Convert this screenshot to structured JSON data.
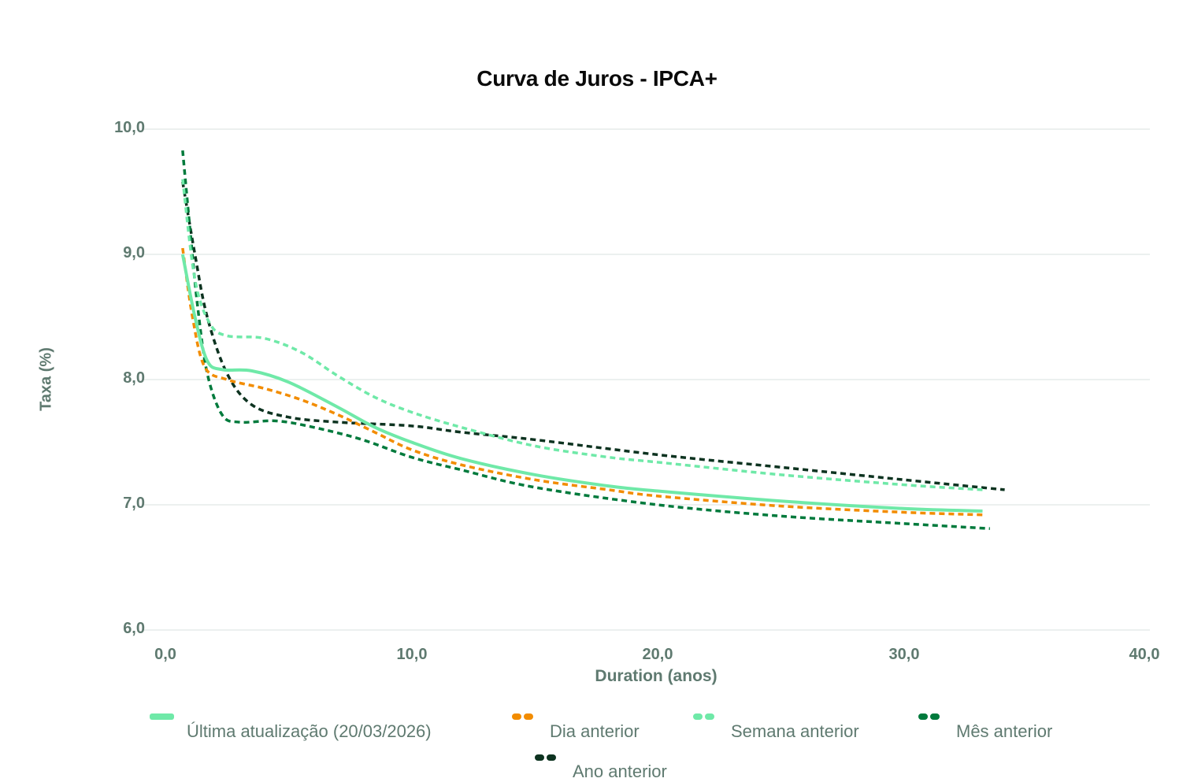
{
  "chart_data": {
    "type": "line",
    "title": "Curva de Juros - IPCA+",
    "xlabel": "Duration (anos)",
    "ylabel": "Taxa (%)",
    "xlim": [
      0,
      40
    ],
    "ylim": [
      6,
      10
    ],
    "x_ticks": [
      "0,0",
      "10,0",
      "20,0",
      "30,0",
      "40,0"
    ],
    "y_ticks": [
      "10,0",
      "9,0",
      "8,0",
      "7,0",
      "6,0"
    ],
    "grid": "horizontal",
    "legend_position": "bottom",
    "series": [
      {
        "name": "Última atualização (20/03/2026)",
        "color": "#6FE9A8",
        "style": "solid",
        "points": [
          [
            0.7,
            9.0
          ],
          [
            1.2,
            8.5
          ],
          [
            1.7,
            8.15
          ],
          [
            2.3,
            8.08
          ],
          [
            3.5,
            8.07
          ],
          [
            5.0,
            7.98
          ],
          [
            7.0,
            7.78
          ],
          [
            8.5,
            7.62
          ],
          [
            10,
            7.5
          ],
          [
            12,
            7.37
          ],
          [
            15,
            7.24
          ],
          [
            18,
            7.15
          ],
          [
            20,
            7.11
          ],
          [
            25,
            7.03
          ],
          [
            30,
            6.97
          ],
          [
            33.2,
            6.95
          ]
        ]
      },
      {
        "name": "Dia anterior",
        "color": "#F28C00",
        "style": "dashed",
        "points": [
          [
            0.7,
            9.05
          ],
          [
            1.1,
            8.5
          ],
          [
            1.6,
            8.1
          ],
          [
            2.5,
            8.0
          ],
          [
            4.0,
            7.93
          ],
          [
            5.5,
            7.84
          ],
          [
            7.0,
            7.72
          ],
          [
            8.5,
            7.58
          ],
          [
            10,
            7.44
          ],
          [
            12,
            7.32
          ],
          [
            15,
            7.2
          ],
          [
            18,
            7.12
          ],
          [
            20,
            7.07
          ],
          [
            25,
            6.99
          ],
          [
            30,
            6.94
          ],
          [
            33.2,
            6.92
          ]
        ]
      },
      {
        "name": "Semana anterior",
        "color": "#6FE9A8",
        "style": "dashed",
        "points": [
          [
            0.7,
            9.6
          ],
          [
            1.2,
            8.8
          ],
          [
            1.8,
            8.45
          ],
          [
            2.5,
            8.35
          ],
          [
            4.0,
            8.33
          ],
          [
            5.5,
            8.22
          ],
          [
            7.0,
            8.03
          ],
          [
            8.5,
            7.86
          ],
          [
            10,
            7.74
          ],
          [
            12,
            7.62
          ],
          [
            15,
            7.47
          ],
          [
            18,
            7.38
          ],
          [
            20,
            7.34
          ],
          [
            25,
            7.24
          ],
          [
            30,
            7.16
          ],
          [
            33.2,
            7.12
          ]
        ]
      },
      {
        "name": "Mês anterior",
        "color": "#007A3C",
        "style": "dashed",
        "points": [
          [
            0.7,
            9.83
          ],
          [
            1.0,
            9.2
          ],
          [
            1.3,
            8.6
          ],
          [
            1.7,
            8.05
          ],
          [
            2.3,
            7.72
          ],
          [
            3.0,
            7.66
          ],
          [
            4.5,
            7.67
          ],
          [
            6.0,
            7.62
          ],
          [
            8.0,
            7.52
          ],
          [
            10,
            7.38
          ],
          [
            12,
            7.28
          ],
          [
            15,
            7.14
          ],
          [
            20,
            7.0
          ],
          [
            25,
            6.91
          ],
          [
            30,
            6.85
          ],
          [
            33.5,
            6.81
          ]
        ]
      },
      {
        "name": "Ano anterior",
        "color": "#0D3320",
        "style": "dashed",
        "points": [
          [
            0.7,
            9.58
          ],
          [
            1.2,
            9.0
          ],
          [
            1.7,
            8.5
          ],
          [
            2.5,
            8.05
          ],
          [
            3.5,
            7.8
          ],
          [
            5.0,
            7.7
          ],
          [
            7.0,
            7.66
          ],
          [
            10,
            7.63
          ],
          [
            12,
            7.58
          ],
          [
            15,
            7.52
          ],
          [
            20,
            7.4
          ],
          [
            25,
            7.3
          ],
          [
            30,
            7.2
          ],
          [
            34.1,
            7.12
          ]
        ]
      }
    ]
  },
  "legend": [
    {
      "label": "Última atualização (20/03/2026)",
      "color": "#6FE9A8",
      "style": "solid"
    },
    {
      "label": "Dia anterior",
      "color": "#F28C00",
      "style": "dashed"
    },
    {
      "label": "Semana anterior",
      "color": "#6FE9A8",
      "style": "dashed"
    },
    {
      "label": "Mês anterior",
      "color": "#007A3C",
      "style": "dashed"
    },
    {
      "label": "Ano anterior",
      "color": "#0D3320",
      "style": "dashed"
    }
  ]
}
